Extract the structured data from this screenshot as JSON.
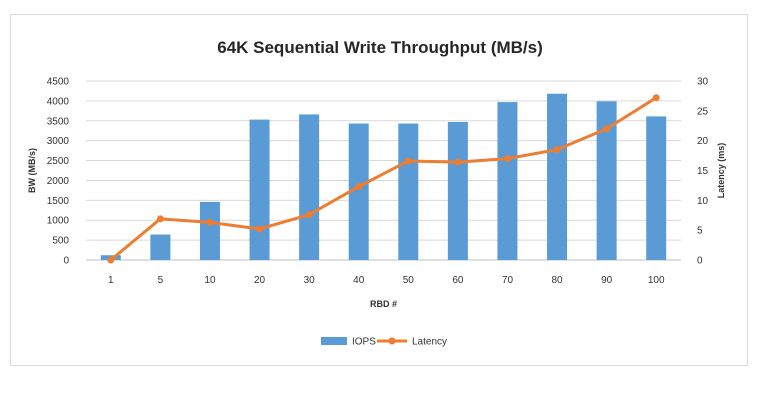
{
  "chart_data": {
    "type": "bar",
    "title": "64K Sequential Write Throughput (MB/s)",
    "xlabel": "RBD #",
    "ylabel": "BW (MB/s)",
    "y2label": "Latency (ms)",
    "categories": [
      "1",
      "5",
      "10",
      "20",
      "30",
      "40",
      "50",
      "60",
      "70",
      "80",
      "90",
      "100"
    ],
    "ylim": [
      0,
      4500
    ],
    "yticks": [
      0,
      500,
      1000,
      1500,
      2000,
      2500,
      3000,
      3500,
      4000,
      4500
    ],
    "y2lim": [
      0,
      30
    ],
    "y2ticks": [
      0,
      5,
      10,
      15,
      20,
      25,
      30
    ],
    "grid": true,
    "legend_position": "bottom",
    "series": [
      {
        "name": "IOPS",
        "type": "bar",
        "axis": "left",
        "color": "#5b9bd5",
        "values": [
          120,
          640,
          1460,
          3530,
          3660,
          3430,
          3430,
          3470,
          3970,
          4180,
          3990,
          3610
        ]
      },
      {
        "name": "Latency",
        "type": "line",
        "axis": "right",
        "color": "#ed7d31",
        "values": [
          0.0,
          6.9,
          6.3,
          5.2,
          7.6,
          12.3,
          16.6,
          16.4,
          17.0,
          18.5,
          22.0,
          27.2
        ]
      }
    ]
  }
}
